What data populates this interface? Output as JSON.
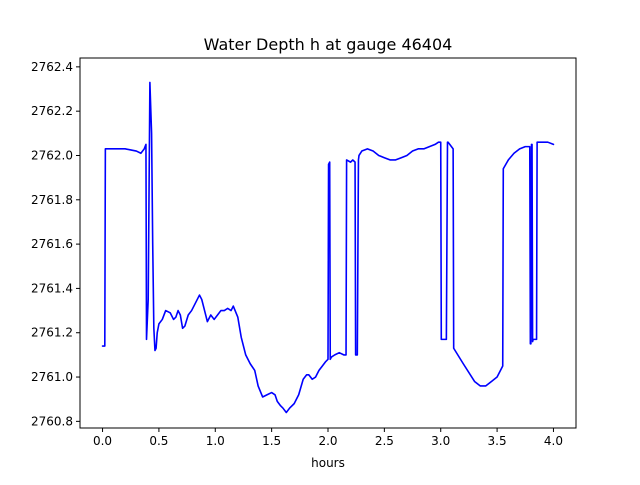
{
  "chart_data": {
    "type": "line",
    "title": "Water Depth h at gauge 46404",
    "xlabel": "hours",
    "ylabel": "",
    "xlim": [
      -0.2,
      4.2
    ],
    "ylim": [
      2760.77,
      2762.44
    ],
    "xticks": [
      0.0,
      0.5,
      1.0,
      1.5,
      2.0,
      2.5,
      3.0,
      3.5,
      4.0
    ],
    "xtick_labels": [
      "0.0",
      "0.5",
      "1.0",
      "1.5",
      "2.0",
      "2.5",
      "3.0",
      "3.5",
      "4.0"
    ],
    "yticks": [
      2760.8,
      2761.0,
      2761.2,
      2761.4,
      2761.6,
      2761.8,
      2762.0,
      2762.2,
      2762.4
    ],
    "ytick_labels": [
      "2760.8",
      "2761.0",
      "2761.2",
      "2761.4",
      "2761.6",
      "2761.8",
      "2762.0",
      "2762.2",
      "2762.4"
    ],
    "grid": false,
    "series": [
      {
        "color": "#0000ff",
        "x": [
          0.0,
          0.02,
          0.025,
          0.1,
          0.2,
          0.25,
          0.3,
          0.34,
          0.37,
          0.385,
          0.39,
          0.405,
          0.42,
          0.435,
          0.445,
          0.455,
          0.465,
          0.475,
          0.485,
          0.5,
          0.53,
          0.56,
          0.6,
          0.63,
          0.65,
          0.67,
          0.69,
          0.71,
          0.73,
          0.76,
          0.79,
          0.82,
          0.86,
          0.88,
          0.9,
          0.93,
          0.96,
          0.99,
          1.02,
          1.05,
          1.08,
          1.11,
          1.14,
          1.16,
          1.2,
          1.23,
          1.27,
          1.31,
          1.35,
          1.38,
          1.42,
          1.46,
          1.5,
          1.53,
          1.55,
          1.58,
          1.6,
          1.63,
          1.66,
          1.7,
          1.74,
          1.78,
          1.81,
          1.83,
          1.86,
          1.89,
          1.92,
          1.95,
          1.98,
          2.0,
          2.005,
          2.015,
          2.02,
          2.03,
          2.06,
          2.1,
          2.14,
          2.16,
          2.165,
          2.2,
          2.22,
          2.24,
          2.245,
          2.26,
          2.27,
          2.275,
          2.3,
          2.35,
          2.4,
          2.45,
          2.5,
          2.55,
          2.6,
          2.65,
          2.7,
          2.75,
          2.8,
          2.85,
          2.9,
          2.95,
          2.98,
          3.0,
          3.005,
          3.05,
          3.06,
          3.065,
          3.08,
          3.11,
          3.115,
          3.2,
          3.3,
          3.35,
          3.4,
          3.45,
          3.5,
          3.55,
          3.555,
          3.6,
          3.65,
          3.7,
          3.75,
          3.79,
          3.795,
          3.8,
          3.805,
          3.81,
          3.815,
          3.82,
          3.85,
          3.855,
          3.9,
          3.95,
          4.0
        ],
        "y": [
          2761.14,
          2761.14,
          2762.03,
          2762.03,
          2762.03,
          2762.025,
          2762.02,
          2762.01,
          2762.03,
          2762.05,
          2761.17,
          2761.35,
          2762.33,
          2762.1,
          2761.6,
          2761.22,
          2761.12,
          2761.13,
          2761.2,
          2761.24,
          2761.26,
          2761.3,
          2761.29,
          2761.26,
          2761.27,
          2761.3,
          2761.28,
          2761.22,
          2761.23,
          2761.28,
          2761.3,
          2761.33,
          2761.37,
          2761.35,
          2761.31,
          2761.25,
          2761.28,
          2761.26,
          2761.28,
          2761.3,
          2761.3,
          2761.31,
          2761.3,
          2761.32,
          2761.27,
          2761.18,
          2761.1,
          2761.06,
          2761.03,
          2760.96,
          2760.91,
          2760.92,
          2760.93,
          2760.92,
          2760.89,
          2760.87,
          2760.86,
          2760.84,
          2760.86,
          2760.88,
          2760.92,
          2760.99,
          2761.01,
          2761.01,
          2760.99,
          2761.0,
          2761.03,
          2761.05,
          2761.07,
          2761.08,
          2761.96,
          2761.97,
          2761.08,
          2761.09,
          2761.1,
          2761.11,
          2761.1,
          2761.1,
          2761.98,
          2761.97,
          2761.98,
          2761.97,
          2761.1,
          2761.1,
          2761.98,
          2762.0,
          2762.02,
          2762.03,
          2762.02,
          2762.0,
          2761.99,
          2761.98,
          2761.98,
          2761.99,
          2762.0,
          2762.02,
          2762.03,
          2762.03,
          2762.04,
          2762.05,
          2762.06,
          2762.06,
          2761.17,
          2761.17,
          2762.06,
          2762.06,
          2762.05,
          2762.03,
          2761.13,
          2761.06,
          2760.98,
          2760.96,
          2760.96,
          2760.98,
          2761.0,
          2761.05,
          2761.94,
          2761.98,
          2762.01,
          2762.03,
          2762.04,
          2762.04,
          2761.15,
          2761.15,
          2762.05,
          2762.05,
          2761.16,
          2761.17,
          2761.17,
          2762.06,
          2762.06,
          2762.06,
          2762.05
        ]
      }
    ]
  }
}
